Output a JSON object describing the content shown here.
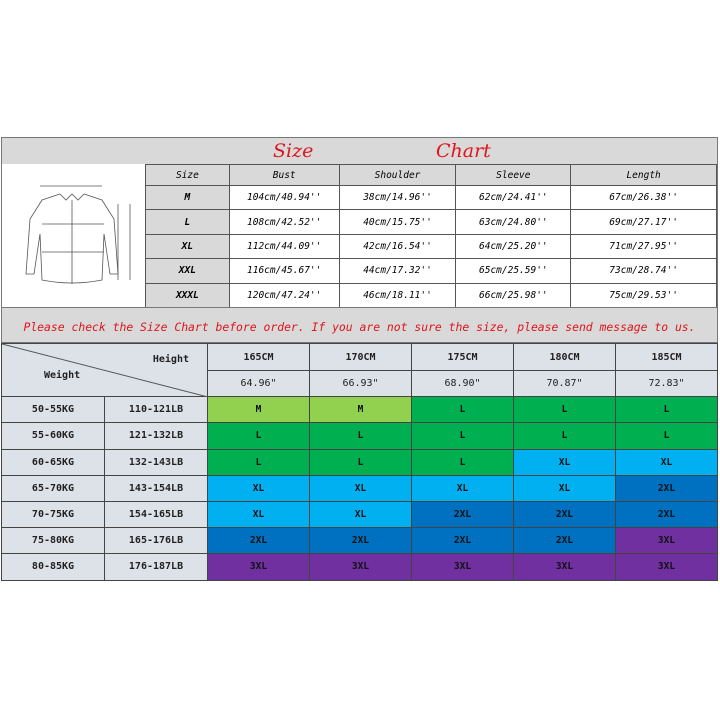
{
  "size_chart": {
    "title_left": "Size",
    "title_right": "Chart",
    "headers": [
      "Size",
      "Bust",
      "Shoulder",
      "Sleeve",
      "Length"
    ],
    "rows": [
      [
        "M",
        "104cm/40.94''",
        "38cm/14.96''",
        "62cm/24.41''",
        "67cm/26.38''"
      ],
      [
        "L",
        "108cm/42.52''",
        "40cm/15.75''",
        "63cm/24.80''",
        "69cm/27.17''"
      ],
      [
        "XL",
        "112cm/44.09''",
        "42cm/16.54''",
        "64cm/25.20''",
        "71cm/27.95''"
      ],
      [
        "XXL",
        "116cm/45.67''",
        "44cm/17.32''",
        "65cm/25.59''",
        "73cm/28.74''"
      ],
      [
        "XXXL",
        "120cm/47.24''",
        "46cm/18.11''",
        "66cm/25.98''",
        "75cm/29.53''"
      ]
    ],
    "note": "Please check the Size Chart before order. If you are not sure the size, please send message to us.",
    "diagram_icon": "shirt-measurement-diagram"
  },
  "fit_grid": {
    "corner_height": "Height",
    "corner_weight": "Weight",
    "heights_cm": [
      "165CM",
      "170CM",
      "175CM",
      "180CM",
      "185CM"
    ],
    "heights_in": [
      "64.96\"",
      "66.93\"",
      "68.90\"",
      "70.87\"",
      "72.83\""
    ],
    "rows": [
      {
        "kg": "50-55KG",
        "lb": "110-121LB",
        "sizes": [
          "M",
          "M",
          "L",
          "L",
          "L"
        ]
      },
      {
        "kg": "55-60KG",
        "lb": "121-132LB",
        "sizes": [
          "L",
          "L",
          "L",
          "L",
          "L"
        ]
      },
      {
        "kg": "60-65KG",
        "lb": "132-143LB",
        "sizes": [
          "L",
          "L",
          "L",
          "XL",
          "XL"
        ]
      },
      {
        "kg": "65-70KG",
        "lb": "143-154LB",
        "sizes": [
          "XL",
          "XL",
          "XL",
          "XL",
          "2XL"
        ]
      },
      {
        "kg": "70-75KG",
        "lb": "154-165LB",
        "sizes": [
          "XL",
          "XL",
          "2XL",
          "2XL",
          "2XL"
        ]
      },
      {
        "kg": "75-80KG",
        "lb": "165-176LB",
        "sizes": [
          "2XL",
          "2XL",
          "2XL",
          "2XL",
          "3XL"
        ]
      },
      {
        "kg": "80-85KG",
        "lb": "176-187LB",
        "sizes": [
          "3XL",
          "3XL",
          "3XL",
          "3XL",
          "3XL"
        ]
      }
    ],
    "size_colors": {
      "M": "#92d050",
      "L": "#00b050",
      "XL": "#00b0f0",
      "2XL": "#0070c0",
      "3XL": "#7030a0"
    }
  }
}
